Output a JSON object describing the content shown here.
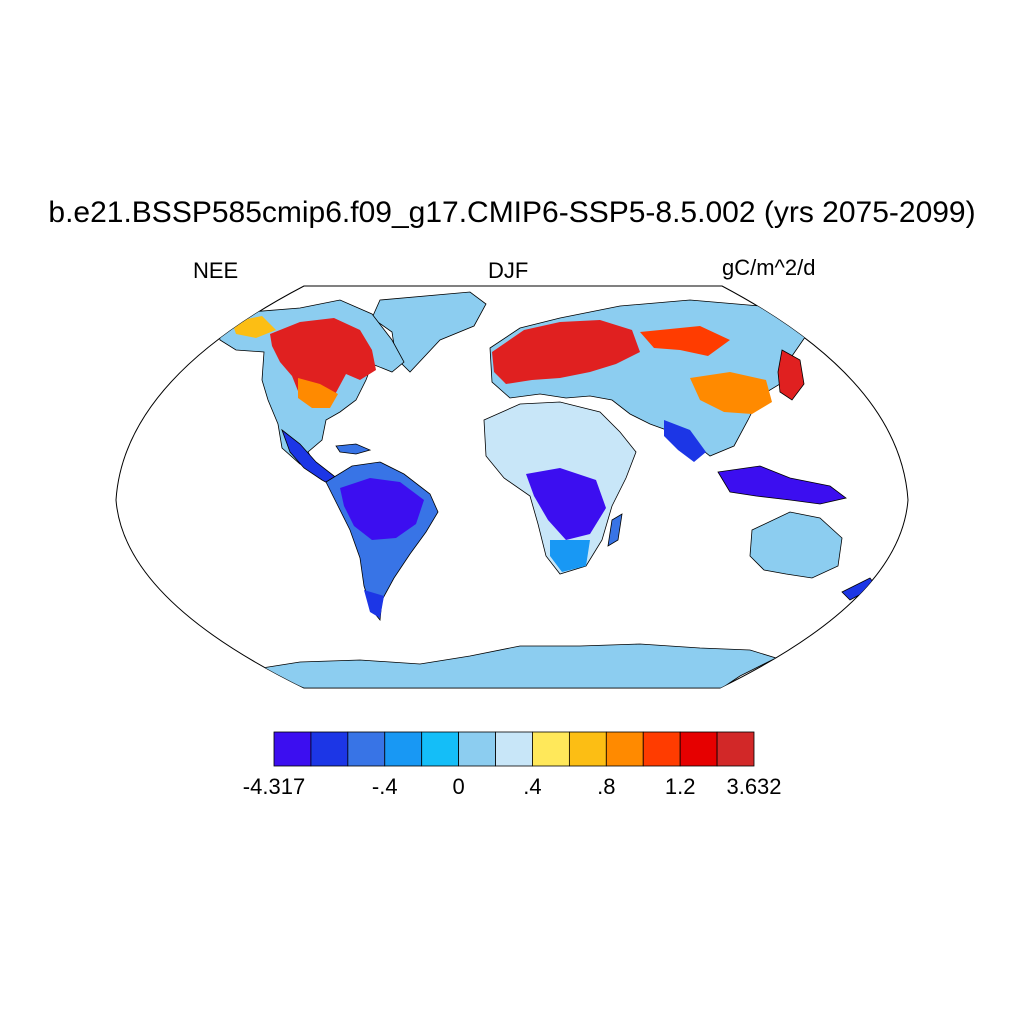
{
  "title": "b.e21.BSSP585cmip6.f09_g17.CMIP6-SSP5-8.5.002 (yrs 2075-2099)",
  "subtitle_left": "NEE",
  "subtitle_center": "DJF",
  "subtitle_right": "gC/m^2/d",
  "colorbar": {
    "colors": [
      "#3c0ef0",
      "#1c36e6",
      "#3874e6",
      "#1898f4",
      "#14bef8",
      "#8ccdf0",
      "#c8e6f8",
      "#ffe85a",
      "#fcbe14",
      "#ff8a00",
      "#ff3c00",
      "#e60000",
      "#d22828"
    ],
    "tick_labels": [
      "-4.317",
      "-.4",
      "0",
      ".4",
      ".8",
      "1.2",
      "3.632"
    ]
  }
}
